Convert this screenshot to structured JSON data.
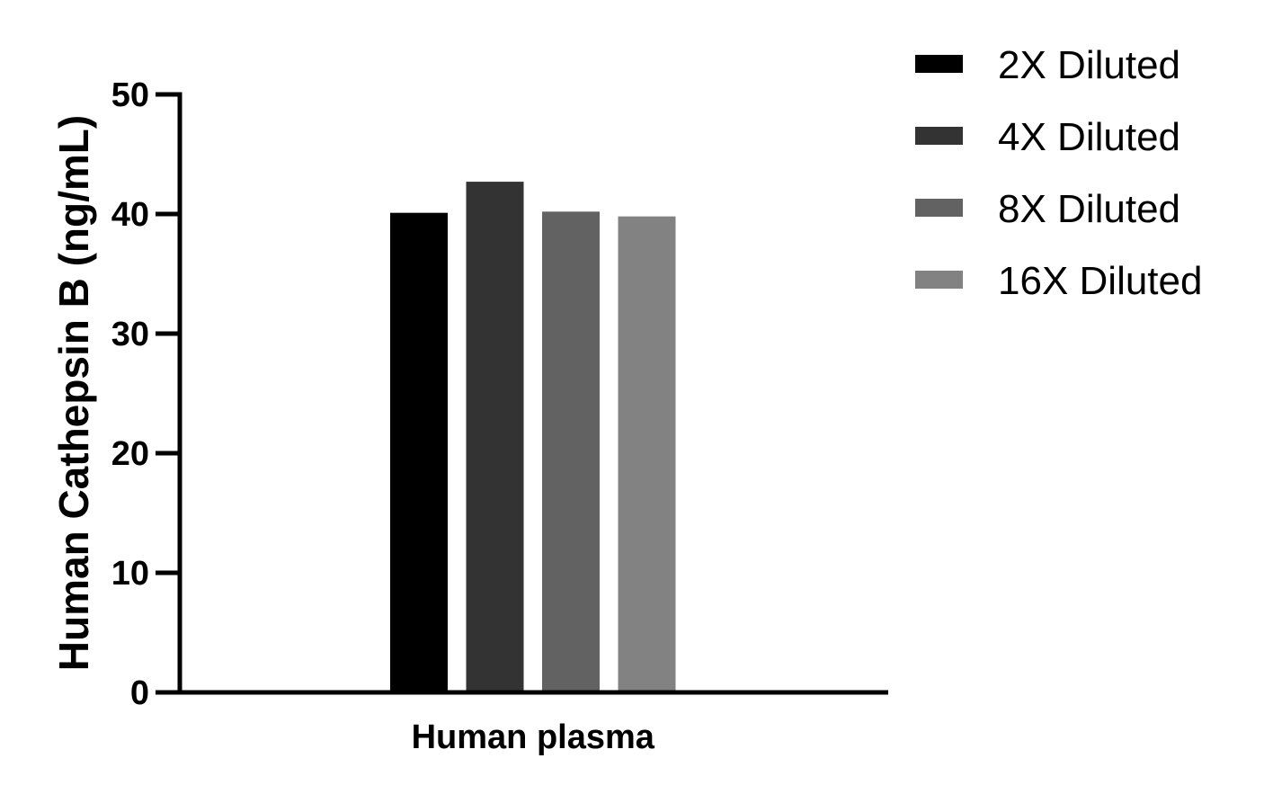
{
  "chart_data": {
    "type": "bar",
    "title": "",
    "xlabel": "",
    "ylabel": "Human Cathepsin B (ng/mL)",
    "categories": [
      "Human plasma"
    ],
    "series": [
      {
        "name": "2X Diluted",
        "values": [
          40.1
        ],
        "color": "#000000"
      },
      {
        "name": "4X Diluted",
        "values": [
          42.7
        ],
        "color": "#333333"
      },
      {
        "name": "8X Diluted",
        "values": [
          40.2
        ],
        "color": "#626262"
      },
      {
        "name": "16X Diluted",
        "values": [
          39.8
        ],
        "color": "#828282"
      }
    ],
    "ylim": [
      0,
      50
    ],
    "yticks": [
      "0",
      "10",
      "20",
      "30",
      "40",
      "50"
    ],
    "grid": false,
    "legend_position": "top-right"
  }
}
